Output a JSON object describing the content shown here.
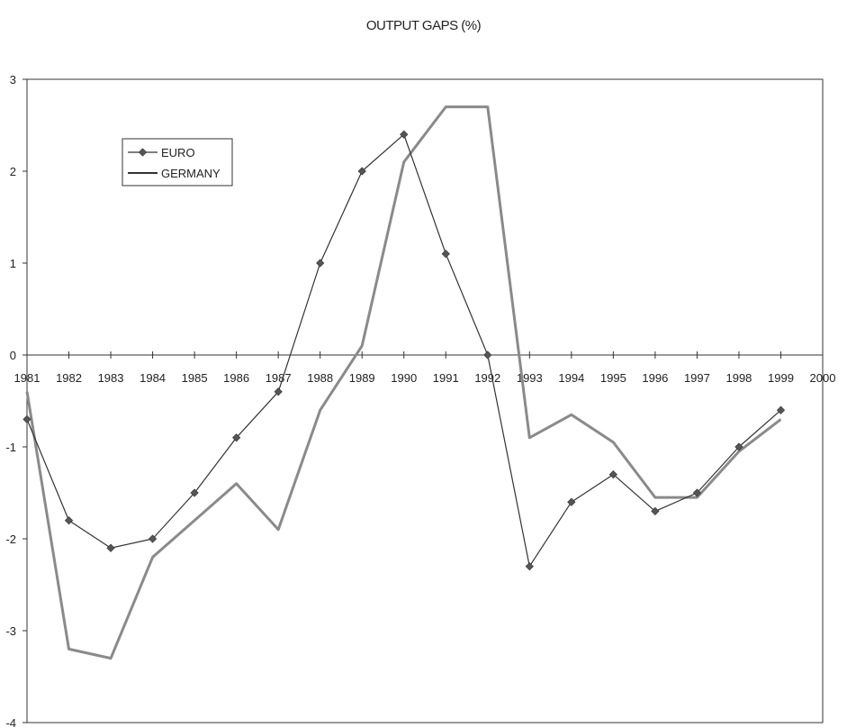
{
  "chart_data": {
    "type": "line",
    "title": "OUTPUT GAPS (%)",
    "xlabel": "",
    "ylabel": "",
    "x": [
      "1981",
      "1982",
      "1983",
      "1984",
      "1985",
      "1986",
      "1987",
      "1988",
      "1989",
      "1990",
      "1991",
      "1992",
      "1993",
      "1994",
      "1995",
      "1996",
      "1997",
      "1998",
      "1999"
    ],
    "x_ticks": [
      "1981",
      "1982",
      "1983",
      "1984",
      "1985",
      "1986",
      "1987",
      "1988",
      "1989",
      "1990",
      "1991",
      "1992",
      "1993",
      "1994",
      "1995",
      "1996",
      "1997",
      "1998",
      "1999",
      "2000"
    ],
    "xlim": [
      1981,
      2000
    ],
    "ylim": [
      -4,
      3
    ],
    "y_ticks": [
      "-4",
      "-3",
      "-2",
      "-1",
      "0",
      "1",
      "2",
      "3"
    ],
    "grid": false,
    "legend_position": "top-left",
    "series": [
      {
        "name": "EURO",
        "marker": "diamond",
        "color": "#333333",
        "values": [
          -0.7,
          -1.8,
          -2.1,
          -2.0,
          -1.5,
          -0.9,
          -0.4,
          1.0,
          2.0,
          2.4,
          1.1,
          0.0,
          -2.3,
          -1.6,
          -1.3,
          -1.7,
          -1.5,
          -1.0,
          -0.6
        ]
      },
      {
        "name": "GERMANY",
        "marker": "none",
        "color": "#8a8a8a",
        "values": [
          -0.4,
          -3.2,
          -3.3,
          -2.2,
          -1.8,
          -1.4,
          -1.9,
          -0.6,
          0.1,
          2.1,
          2.7,
          2.7,
          -0.9,
          -0.65,
          -0.95,
          -1.55,
          -1.55,
          -1.05,
          -0.7
        ]
      }
    ]
  }
}
